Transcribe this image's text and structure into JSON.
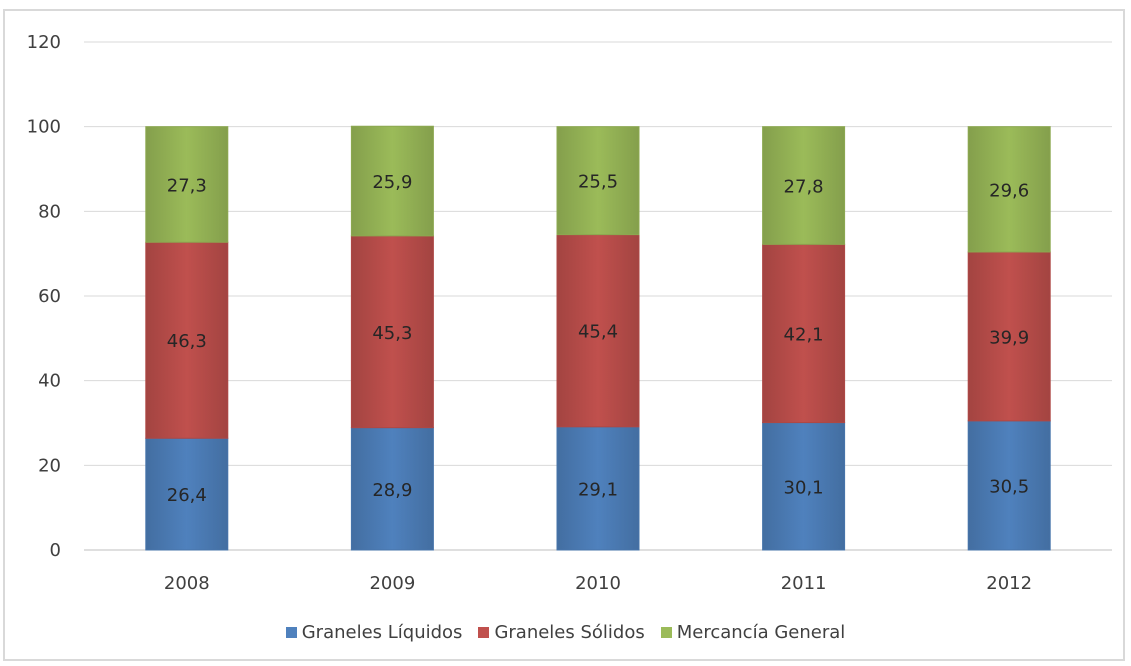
{
  "chart_data": {
    "type": "bar",
    "stacked": true,
    "categories": [
      "2008",
      "2009",
      "2010",
      "2011",
      "2012"
    ],
    "series": [
      {
        "name": "Graneles Líquidos",
        "color": "#4f81bd",
        "values": [
          26.4,
          28.9,
          29.1,
          30.1,
          30.5
        ],
        "labels": [
          "26,4",
          "28,9",
          "29,1",
          "30,1",
          "30,5"
        ]
      },
      {
        "name": "Graneles Sólidos",
        "color": "#c0504d",
        "values": [
          46.3,
          45.3,
          45.4,
          42.1,
          39.9
        ],
        "labels": [
          "46,3",
          "45,3",
          "45,4",
          "42,1",
          "39,9"
        ]
      },
      {
        "name": "Mercancía General",
        "color": "#9bbb59",
        "values": [
          27.3,
          25.9,
          25.5,
          27.8,
          29.6
        ],
        "labels": [
          "27,3",
          "25,9",
          "25,5",
          "27,8",
          "29,6"
        ]
      }
    ],
    "yticks": [
      "0",
      "20",
      "40",
      "60",
      "80",
      "100",
      "120"
    ],
    "ylim": [
      0,
      120
    ],
    "grid": true,
    "legend_position": "bottom"
  }
}
